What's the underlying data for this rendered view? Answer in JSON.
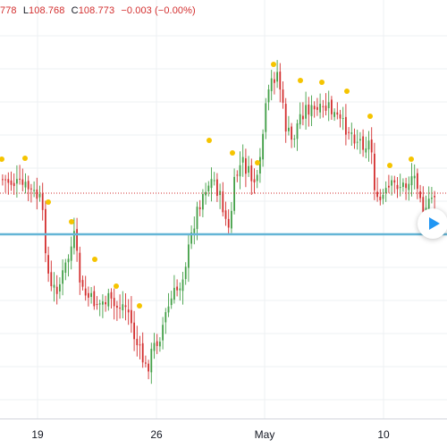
{
  "ohlc": {
    "open_value": "778",
    "low_label": "L",
    "low_value": "108.768",
    "close_label": "C",
    "close_value": "108.773",
    "change": "−0.003 (−0.00%)"
  },
  "time_axis": {
    "labels": [
      "19",
      "26",
      "May",
      "10"
    ]
  },
  "replay_button": {
    "icon": "play-icon"
  },
  "colors": {
    "up": "#43a047",
    "down": "#d32f2f",
    "horizontal_line": "#64b5d6",
    "price_line": "#d32f2f",
    "marker": "#f5c400",
    "grid": "#eef0f3"
  }
}
